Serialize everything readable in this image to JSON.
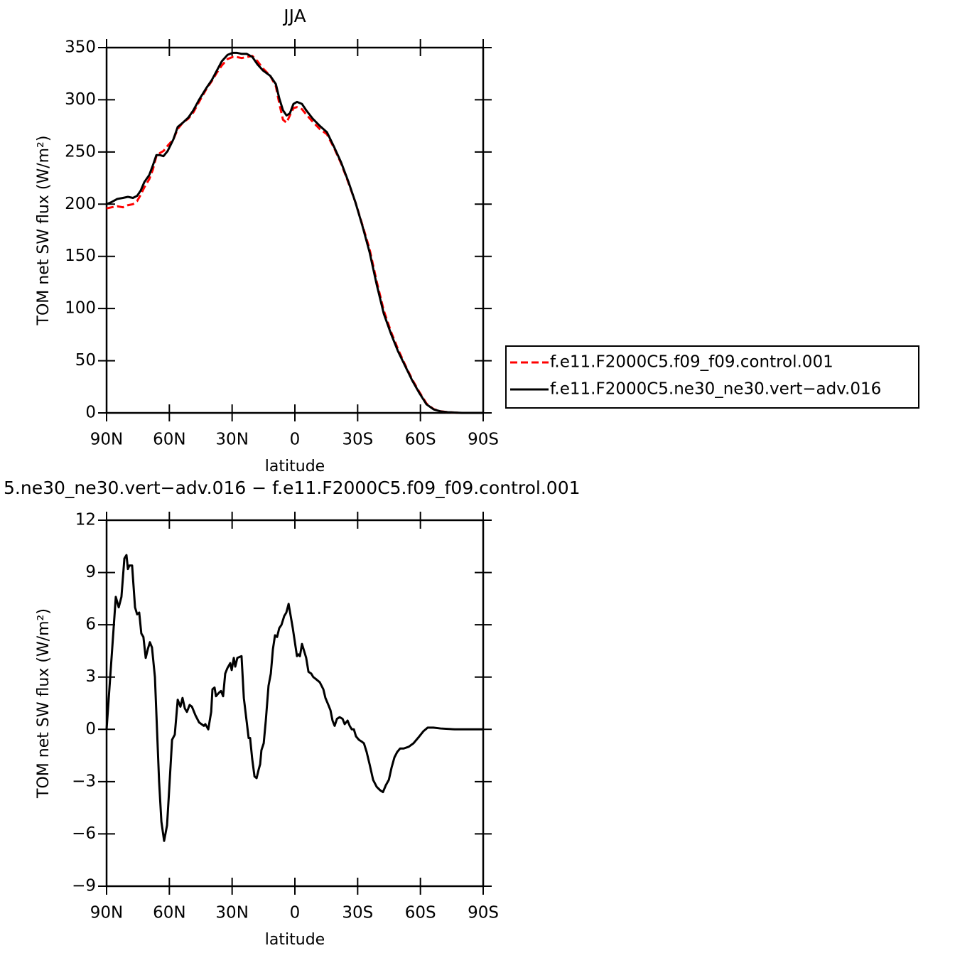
{
  "chart_data": [
    {
      "type": "line",
      "title": "JJA",
      "xlabel": "latitude",
      "ylabel": "TOM net SW flux (W/m²)",
      "xlim": [
        90,
        -90
      ],
      "xticks": [
        {
          "value": 90,
          "label": "90N"
        },
        {
          "value": 60,
          "label": "60N"
        },
        {
          "value": 30,
          "label": "30N"
        },
        0,
        {
          "value": -30,
          "label": "30S"
        },
        {
          "value": -60,
          "label": "60S"
        },
        {
          "value": -90,
          "label": "90S"
        }
      ],
      "ylim": [
        0,
        350
      ],
      "yticks": [
        0,
        50,
        100,
        150,
        200,
        250,
        300,
        350
      ],
      "legend": "right",
      "x": [
        90,
        87.6,
        84.9,
        82.2,
        79.8,
        77.4,
        75.4,
        73.7,
        72,
        69.6,
        67.9,
        66.2,
        64.5,
        62.8,
        60.8,
        58.1,
        56,
        53.6,
        50.9,
        48.5,
        45.8,
        42.4,
        39.7,
        37.3,
        34.9,
        32.2,
        29.8,
        27.8,
        25.4,
        23,
        20.3,
        17.9,
        15.2,
        11.8,
        9.1,
        7.4,
        5.7,
        4.0,
        2.4,
        0.7,
        -1,
        -3.4,
        -5.4,
        -8.5,
        -11.9,
        -15.3,
        -18.7,
        -22.1,
        -25.5,
        -28.9,
        -32.3,
        -35.7,
        -39.1,
        -42.5,
        -45.9,
        -49.3,
        -52.7,
        -56.1,
        -59.5,
        -62.9,
        -66.3,
        -69.7,
        -73,
        -79.9,
        -90
      ],
      "series": [
        {
          "name": "f.e11.F2000C5.f09_f09.control.001",
          "color": "#ff0000",
          "dash": true,
          "values": [
            196,
            197,
            198,
            197,
            199,
            200,
            203,
            209,
            216,
            224,
            233,
            246,
            249,
            251,
            256,
            262,
            272,
            278,
            282,
            288,
            298,
            310,
            318,
            326,
            333,
            339,
            341,
            341,
            340,
            341,
            342,
            337,
            330,
            323,
            313,
            296,
            281,
            278,
            285,
            292,
            293,
            291,
            286,
            279,
            272,
            267,
            254,
            239,
            221,
            202,
            180,
            157,
            126,
            98,
            78,
            61,
            46,
            32,
            20,
            9,
            3.6,
            1.5,
            0.7,
            0,
            0
          ]
        },
        {
          "name": "f.e11.F2000C5.ne30_ne30.vert−adv.016",
          "color": "#000000",
          "dash": false,
          "values": [
            200,
            202,
            205,
            206,
            207,
            206,
            208,
            213,
            221,
            228,
            237,
            247,
            247,
            246,
            251,
            262,
            274,
            278,
            283,
            290,
            300,
            311,
            319,
            328,
            337,
            343,
            345,
            345,
            344,
            344,
            341,
            334,
            328,
            323,
            315,
            301,
            290,
            285,
            287,
            296,
            298,
            296,
            290,
            282,
            275,
            269,
            255,
            240,
            222,
            202,
            179,
            154,
            123,
            95,
            76,
            59,
            45,
            31,
            19,
            8.2,
            3.4,
            1.4,
            0.7,
            0,
            0
          ]
        }
      ]
    },
    {
      "type": "line",
      "title": "5.ne30_ne30.vert−adv.016 − f.e11.F2000C5.f09_f09.control.001",
      "xlabel": "latitude",
      "ylabel": "TOM net SW flux (W/m²)",
      "xlim": [
        90,
        -90
      ],
      "xticks": [
        {
          "value": 90,
          "label": "90N"
        },
        {
          "value": 60,
          "label": "60N"
        },
        {
          "value": 30,
          "label": "30N"
        },
        0,
        {
          "value": -30,
          "label": "30S"
        },
        {
          "value": -60,
          "label": "60S"
        },
        {
          "value": -90,
          "label": "90S"
        }
      ],
      "ylim": [
        -9,
        12
      ],
      "yticks": [
        {
          "value": -9,
          "label": "−9"
        },
        {
          "value": -6,
          "label": "−6"
        },
        {
          "value": -3,
          "label": "−3"
        },
        0,
        3,
        6,
        9,
        12
      ],
      "x": [
        90,
        85.6,
        84.2,
        82.9,
        81.5,
        80.5,
        79.8,
        79.1,
        77.8,
        76.4,
        75.4,
        74.4,
        73.4,
        72.4,
        71.3,
        70.3,
        69.3,
        68.3,
        66.9,
        65.9,
        64.9,
        63.8,
        62.5,
        61.1,
        60.1,
        58.7,
        57.4,
        56.0,
        54.7,
        53.7,
        52.6,
        51.6,
        50.3,
        49.2,
        47.5,
        45.8,
        43.5,
        42.8,
        41.4,
        40.0,
        39.4,
        38.4,
        37.7,
        36.3,
        35.3,
        34.3,
        33.3,
        32.3,
        30.9,
        30.2,
        29.2,
        28.5,
        27.5,
        25.5,
        24.4,
        23.1,
        22.1,
        21.4,
        20.4,
        19.3,
        18.3,
        17.3,
        16.6,
        16.0,
        14.9,
        13.9,
        12.6,
        11.5,
        10.5,
        9.5,
        8.5,
        7.5,
        6.4,
        5.1,
        4.1,
        3.0,
        2.0,
        1.0,
        0,
        -1.0,
        -1.7,
        -2.4,
        -3.4,
        -4.4,
        -5.4,
        -6.5,
        -7.8,
        -8.8,
        -9.9,
        -11.9,
        -13.6,
        -14.6,
        -16.0,
        -17.0,
        -18.0,
        -19.0,
        -20.1,
        -21.4,
        -22.8,
        -23.8,
        -25.2,
        -26.2,
        -27.2,
        -28.2,
        -29.2,
        -30.6,
        -31.9,
        -33.0,
        -34.3,
        -35.7,
        -37.4,
        -39.1,
        -40.8,
        -42.1,
        -43.5,
        -44.9,
        -46.2,
        -47.6,
        -48.9,
        -50.3,
        -52.0,
        -54.4,
        -56.7,
        -59.5,
        -61.5,
        -63.5,
        -66.2,
        -69.6,
        -76.4,
        -90
      ],
      "series": [
        {
          "color": "#000000",
          "dash": false,
          "values": [
            0,
            7.6,
            7,
            7.6,
            9.8,
            10,
            9.2,
            9.4,
            9.4,
            7,
            6.6,
            6.7,
            5.5,
            5.3,
            4.1,
            4.6,
            5,
            4.7,
            3,
            0,
            -3,
            -5.3,
            -6.4,
            -5.5,
            -3.5,
            -0.6,
            -0.3,
            1.7,
            1.3,
            1.8,
            1.2,
            1,
            1.4,
            1.3,
            0.8,
            0.4,
            0.2,
            0.3,
            0,
            1,
            2.3,
            2.4,
            1.9,
            2.1,
            2.2,
            1.9,
            3.2,
            3.5,
            3.8,
            3.4,
            4.1,
            3.6,
            4.1,
            4.2,
            1.8,
            0.5,
            -0.5,
            -0.5,
            -1.7,
            -2.7,
            -2.8,
            -2.3,
            -2,
            -1.2,
            -0.8,
            0.5,
            2.5,
            3.2,
            4.6,
            5.4,
            5.3,
            5.8,
            6,
            6.5,
            6.7,
            7.2,
            6.5,
            5.8,
            5,
            4.2,
            4.3,
            4.2,
            4.9,
            4.5,
            4.1,
            3.3,
            3.2,
            3,
            2.9,
            2.7,
            2.3,
            1.8,
            1.4,
            1.1,
            0.5,
            0.2,
            0.6,
            0.7,
            0.6,
            0.3,
            0.5,
            0.2,
            0,
            0,
            -0.4,
            -0.6,
            -0.7,
            -0.8,
            -1.3,
            -2,
            -2.9,
            -3.3,
            -3.5,
            -3.6,
            -3.2,
            -2.9,
            -2.2,
            -1.6,
            -1.3,
            -1.1,
            -1.1,
            -1,
            -0.8,
            -0.4,
            -0.1,
            0.1,
            0.1,
            0.05,
            0,
            0
          ]
        }
      ]
    }
  ]
}
